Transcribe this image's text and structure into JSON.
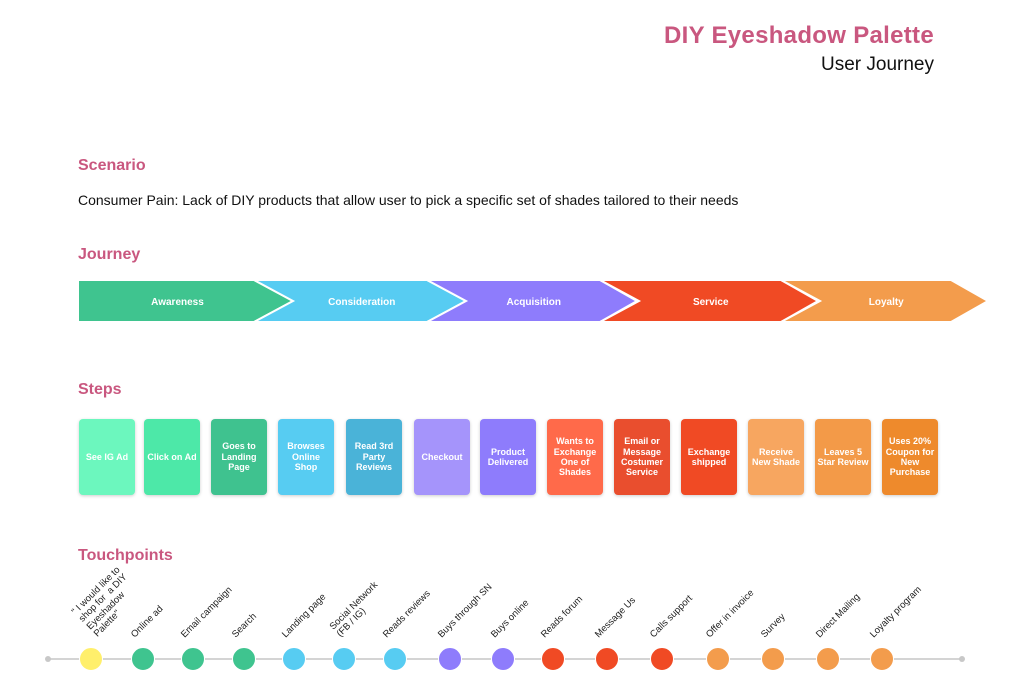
{
  "header": {
    "title": "DIY Eyeshadow Palette",
    "subtitle": "User Journey"
  },
  "sections": {
    "scenario": "Scenario",
    "journey": "Journey",
    "steps": "Steps",
    "touchpoints": "Touchpoints"
  },
  "scenario_text": "Consumer Pain: Lack of DIY products that allow user to pick a specific set of shades tailored to their needs",
  "colors": {
    "accent": "#C9577F",
    "awareness": "#3FC48F",
    "consideration": "#57CCF2",
    "acquisition": "#8E7CFC",
    "service": "#F04A24",
    "loyalty": "#F39C4C"
  },
  "journey": [
    {
      "label": "Awareness",
      "color": "#3FC48F"
    },
    {
      "label": "Consideration",
      "color": "#57CCF2"
    },
    {
      "label": "Acquisition",
      "color": "#8E7CFC"
    },
    {
      "label": "Service",
      "color": "#F04A24"
    },
    {
      "label": "Loyalty",
      "color": "#F39C4C"
    }
  ],
  "steps": [
    {
      "label": "See IG Ad",
      "color": "#6CF7BE"
    },
    {
      "label": "Click on Ad",
      "color": "#4DE8A8"
    },
    {
      "label": "Goes to Landing Page",
      "color": "#3FC28F"
    },
    {
      "label": "Browses Online Shop",
      "color": "#57CCF2"
    },
    {
      "label": "Read 3rd Party Reviews",
      "color": "#4AB3D8"
    },
    {
      "label": "Checkout",
      "color": "#A594FB"
    },
    {
      "label": "Product Delivered",
      "color": "#8E7CFC"
    },
    {
      "label": "Wants to Exchange One of Shades",
      "color": "#FF6A4A"
    },
    {
      "label": "Email or Message Costumer Service",
      "color": "#E94E2E"
    },
    {
      "label": "Exchange shipped",
      "color": "#F04A24"
    },
    {
      "label": "Receive New Shade",
      "color": "#F7A660"
    },
    {
      "label": "Leaves 5 Star Review",
      "color": "#F39A48"
    },
    {
      "label": "Uses 20% Coupon for New Purchase",
      "color": "#EE8A2C"
    }
  ],
  "touchpoints": [
    {
      "label": "\" I would like to\nshop for  a DIY\nEyeshadow\nPalette\"",
      "color": "#FFEF6B"
    },
    {
      "label": "Online ad",
      "color": "#3FC48F"
    },
    {
      "label": "Email campaign",
      "color": "#3FC48F"
    },
    {
      "label": "Search",
      "color": "#3FC48F"
    },
    {
      "label": "Landing page",
      "color": "#57CCF2"
    },
    {
      "label": "Social Network\n(FB / IG)",
      "color": "#57CCF2"
    },
    {
      "label": "Reads reviews",
      "color": "#57CCF2"
    },
    {
      "label": "Buys through SN",
      "color": "#8E7CFC"
    },
    {
      "label": "Buys online",
      "color": "#8E7CFC"
    },
    {
      "label": "Reads forum",
      "color": "#F04A24"
    },
    {
      "label": "Message Us",
      "color": "#F04A24"
    },
    {
      "label": "Calls support",
      "color": "#F04A24"
    },
    {
      "label": "Offer in invoice",
      "color": "#F39C4C"
    },
    {
      "label": "Survey",
      "color": "#F39C4C"
    },
    {
      "label": "Direct Mailing",
      "color": "#F39C4C"
    },
    {
      "label": "Loyalty program",
      "color": "#F39C4C"
    }
  ]
}
